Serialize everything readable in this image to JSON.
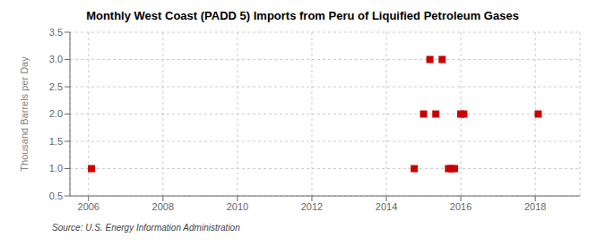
{
  "chart_data": {
    "type": "scatter",
    "title": "Monthly West Coast (PADD 5) Imports from Peru of Liquified Petroleum Gases",
    "ylabel": "Thousand Barrels per Day",
    "annotations": [
      "Source: U.S. Energy Information Administration"
    ],
    "x": [
      2006.08,
      2014.75,
      2015.0,
      2015.17,
      2015.33,
      2015.5,
      2015.67,
      2015.75,
      2015.83,
      2016.0,
      2016.08,
      2018.08
    ],
    "values": [
      1.0,
      1.0,
      2.0,
      3.0,
      2.0,
      3.0,
      1.0,
      1.0,
      1.0,
      2.0,
      2.0,
      2.0
    ],
    "color": "#cc0000",
    "marker": "square",
    "xlim": [
      2005.5,
      2019.2
    ],
    "ylim": [
      0.5,
      3.5
    ],
    "xticks": [
      2006,
      2008,
      2010,
      2012,
      2014,
      2016,
      2018
    ],
    "yticks": [
      0.5,
      {
        "value": 1.0,
        "label": "1.0"
      },
      1.5,
      {
        "value": 2.0,
        "label": "2.0"
      },
      2.5,
      {
        "value": 3.0,
        "label": "3.0"
      },
      3.5
    ],
    "grid": true
  }
}
